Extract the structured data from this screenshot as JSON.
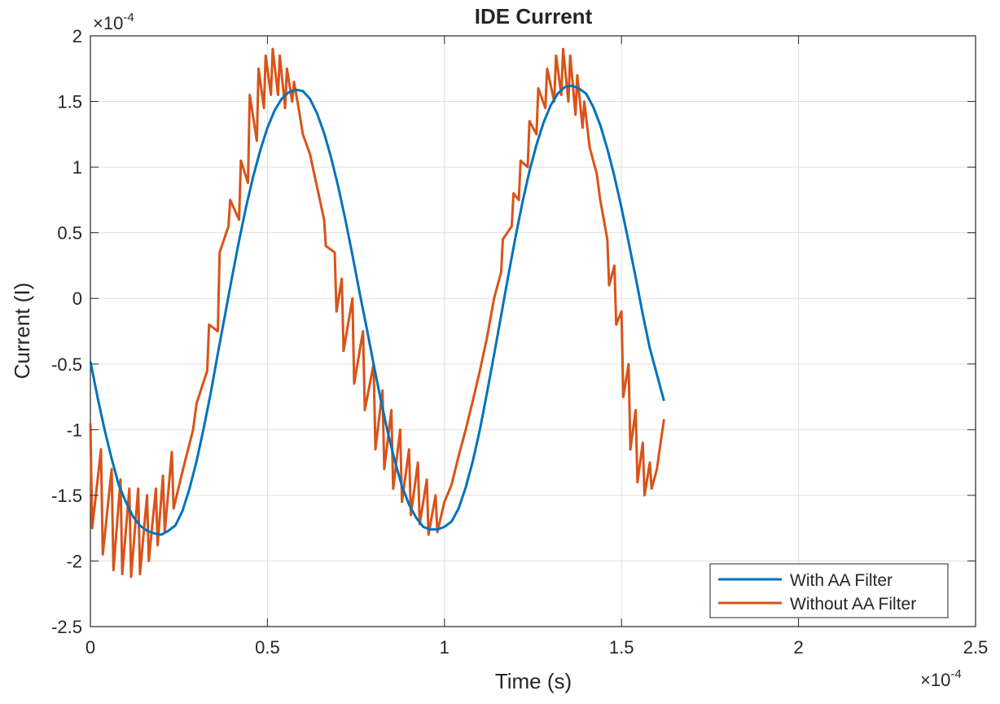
{
  "chart_data": {
    "type": "line",
    "title": "IDE Current",
    "xlabel": "Time (s)",
    "ylabel": "Current (I)",
    "x_exponent_label": "×10",
    "x_exponent_power": "-4",
    "y_exponent_label": "×10",
    "y_exponent_power": "-4",
    "xlim": [
      0,
      2.5
    ],
    "ylim": [
      -2.5,
      2
    ],
    "x_ticks": [
      0,
      0.5,
      1,
      1.5,
      2,
      2.5
    ],
    "x_tick_labels": [
      "0",
      "0.5",
      "1",
      "1.5",
      "2",
      "2.5"
    ],
    "y_ticks": [
      -2.5,
      -2,
      -1.5,
      -1,
      -0.5,
      0,
      0.5,
      1,
      1.5,
      2
    ],
    "y_tick_labels": [
      "-2.5",
      "-2",
      "-1.5",
      "-1",
      "-0.5",
      "0",
      "0.5",
      "1",
      "1.5",
      "2"
    ],
    "grid": true,
    "legend_position": "bottom-right",
    "series": [
      {
        "name": "With AA Filter",
        "color": "#0072BD",
        "points": [
          [
            0,
            -0.48
          ],
          [
            0.02,
            -0.75
          ],
          [
            0.04,
            -1.0
          ],
          [
            0.06,
            -1.22
          ],
          [
            0.08,
            -1.42
          ],
          [
            0.1,
            -1.55
          ],
          [
            0.12,
            -1.66
          ],
          [
            0.14,
            -1.73
          ],
          [
            0.16,
            -1.77
          ],
          [
            0.18,
            -1.79
          ],
          [
            0.2,
            -1.8
          ],
          [
            0.22,
            -1.77
          ],
          [
            0.24,
            -1.73
          ],
          [
            0.26,
            -1.62
          ],
          [
            0.28,
            -1.45
          ],
          [
            0.3,
            -1.24
          ],
          [
            0.32,
            -0.99
          ],
          [
            0.34,
            -0.72
          ],
          [
            0.36,
            -0.42
          ],
          [
            0.38,
            -0.13
          ],
          [
            0.4,
            0.16
          ],
          [
            0.42,
            0.44
          ],
          [
            0.44,
            0.7
          ],
          [
            0.46,
            0.93
          ],
          [
            0.48,
            1.13
          ],
          [
            0.5,
            1.3
          ],
          [
            0.52,
            1.43
          ],
          [
            0.54,
            1.52
          ],
          [
            0.56,
            1.57
          ],
          [
            0.58,
            1.59
          ],
          [
            0.6,
            1.58
          ],
          [
            0.62,
            1.52
          ],
          [
            0.64,
            1.41
          ],
          [
            0.66,
            1.26
          ],
          [
            0.68,
            1.07
          ],
          [
            0.7,
            0.85
          ],
          [
            0.72,
            0.6
          ],
          [
            0.74,
            0.33
          ],
          [
            0.76,
            0.05
          ],
          [
            0.78,
            -0.22
          ],
          [
            0.8,
            -0.5
          ],
          [
            0.82,
            -0.77
          ],
          [
            0.84,
            -1.02
          ],
          [
            0.86,
            -1.24
          ],
          [
            0.88,
            -1.43
          ],
          [
            0.9,
            -1.57
          ],
          [
            0.92,
            -1.67
          ],
          [
            0.94,
            -1.74
          ],
          [
            0.96,
            -1.76
          ],
          [
            0.98,
            -1.76
          ],
          [
            1.0,
            -1.74
          ],
          [
            1.02,
            -1.7
          ],
          [
            1.04,
            -1.6
          ],
          [
            1.06,
            -1.44
          ],
          [
            1.08,
            -1.24
          ],
          [
            1.1,
            -1.0
          ],
          [
            1.12,
            -0.72
          ],
          [
            1.14,
            -0.43
          ],
          [
            1.16,
            -0.13
          ],
          [
            1.18,
            0.17
          ],
          [
            1.2,
            0.46
          ],
          [
            1.22,
            0.73
          ],
          [
            1.24,
            0.97
          ],
          [
            1.26,
            1.17
          ],
          [
            1.28,
            1.34
          ],
          [
            1.3,
            1.47
          ],
          [
            1.32,
            1.56
          ],
          [
            1.34,
            1.61
          ],
          [
            1.36,
            1.62
          ],
          [
            1.38,
            1.6
          ],
          [
            1.4,
            1.56
          ],
          [
            1.42,
            1.46
          ],
          [
            1.44,
            1.32
          ],
          [
            1.46,
            1.14
          ],
          [
            1.48,
            0.93
          ],
          [
            1.5,
            0.69
          ],
          [
            1.52,
            0.43
          ],
          [
            1.54,
            0.16
          ],
          [
            1.56,
            -0.12
          ],
          [
            1.58,
            -0.38
          ],
          [
            1.6,
            -0.58
          ],
          [
            1.62,
            -0.78
          ]
        ]
      },
      {
        "name": "Without AA Filter",
        "color": "#D95319",
        "points": [
          [
            0,
            -0.95
          ],
          [
            0.005,
            -1.75
          ],
          [
            0.03,
            -1.15
          ],
          [
            0.035,
            -1.95
          ],
          [
            0.06,
            -1.3
          ],
          [
            0.065,
            -2.07
          ],
          [
            0.085,
            -1.38
          ],
          [
            0.09,
            -2.1
          ],
          [
            0.11,
            -1.45
          ],
          [
            0.115,
            -2.12
          ],
          [
            0.135,
            -1.45
          ],
          [
            0.14,
            -2.1
          ],
          [
            0.16,
            -1.5
          ],
          [
            0.165,
            -2.0
          ],
          [
            0.185,
            -1.45
          ],
          [
            0.19,
            -1.88
          ],
          [
            0.205,
            -1.35
          ],
          [
            0.21,
            -1.78
          ],
          [
            0.23,
            -1.17
          ],
          [
            0.235,
            -1.6
          ],
          [
            0.26,
            -1.32
          ],
          [
            0.29,
            -1.0
          ],
          [
            0.3,
            -0.8
          ],
          [
            0.33,
            -0.55
          ],
          [
            0.335,
            -0.2
          ],
          [
            0.36,
            -0.25
          ],
          [
            0.365,
            0.35
          ],
          [
            0.39,
            0.55
          ],
          [
            0.395,
            0.75
          ],
          [
            0.42,
            0.6
          ],
          [
            0.425,
            1.05
          ],
          [
            0.445,
            0.88
          ],
          [
            0.45,
            1.55
          ],
          [
            0.47,
            1.2
          ],
          [
            0.475,
            1.75
          ],
          [
            0.49,
            1.45
          ],
          [
            0.495,
            1.85
          ],
          [
            0.51,
            1.55
          ],
          [
            0.515,
            1.9
          ],
          [
            0.53,
            1.55
          ],
          [
            0.535,
            1.85
          ],
          [
            0.55,
            1.45
          ],
          [
            0.555,
            1.75
          ],
          [
            0.57,
            1.5
          ],
          [
            0.575,
            1.65
          ],
          [
            0.59,
            1.42
          ],
          [
            0.6,
            1.25
          ],
          [
            0.62,
            1.1
          ],
          [
            0.64,
            0.85
          ],
          [
            0.66,
            0.6
          ],
          [
            0.665,
            0.4
          ],
          [
            0.69,
            0.35
          ],
          [
            0.695,
            -0.1
          ],
          [
            0.71,
            0.15
          ],
          [
            0.715,
            -0.4
          ],
          [
            0.74,
            0.0
          ],
          [
            0.745,
            -0.65
          ],
          [
            0.77,
            -0.25
          ],
          [
            0.775,
            -0.85
          ],
          [
            0.8,
            -0.5
          ],
          [
            0.805,
            -1.15
          ],
          [
            0.825,
            -0.7
          ],
          [
            0.83,
            -1.3
          ],
          [
            0.85,
            -0.85
          ],
          [
            0.855,
            -1.45
          ],
          [
            0.875,
            -1.0
          ],
          [
            0.88,
            -1.55
          ],
          [
            0.9,
            -1.15
          ],
          [
            0.905,
            -1.65
          ],
          [
            0.925,
            -1.25
          ],
          [
            0.93,
            -1.72
          ],
          [
            0.95,
            -1.38
          ],
          [
            0.955,
            -1.8
          ],
          [
            0.975,
            -1.5
          ],
          [
            0.98,
            -1.78
          ],
          [
            1.0,
            -1.55
          ],
          [
            1.02,
            -1.42
          ],
          [
            1.04,
            -1.2
          ],
          [
            1.06,
            -1.0
          ],
          [
            1.08,
            -0.78
          ],
          [
            1.1,
            -0.55
          ],
          [
            1.12,
            -0.3
          ],
          [
            1.14,
            0.0
          ],
          [
            1.16,
            0.2
          ],
          [
            1.165,
            0.45
          ],
          [
            1.19,
            0.55
          ],
          [
            1.195,
            0.8
          ],
          [
            1.21,
            0.75
          ],
          [
            1.215,
            1.05
          ],
          [
            1.235,
            1.0
          ],
          [
            1.24,
            1.35
          ],
          [
            1.26,
            1.25
          ],
          [
            1.265,
            1.6
          ],
          [
            1.285,
            1.45
          ],
          [
            1.29,
            1.75
          ],
          [
            1.31,
            1.5
          ],
          [
            1.315,
            1.85
          ],
          [
            1.33,
            1.55
          ],
          [
            1.335,
            1.9
          ],
          [
            1.35,
            1.5
          ],
          [
            1.355,
            1.85
          ],
          [
            1.37,
            1.4
          ],
          [
            1.375,
            1.7
          ],
          [
            1.39,
            1.3
          ],
          [
            1.395,
            1.5
          ],
          [
            1.41,
            1.15
          ],
          [
            1.43,
            0.95
          ],
          [
            1.44,
            0.75
          ],
          [
            1.46,
            0.45
          ],
          [
            1.465,
            0.1
          ],
          [
            1.48,
            0.25
          ],
          [
            1.485,
            -0.2
          ],
          [
            1.5,
            -0.1
          ],
          [
            1.505,
            -0.75
          ],
          [
            1.52,
            -0.5
          ],
          [
            1.525,
            -1.15
          ],
          [
            1.54,
            -0.85
          ],
          [
            1.545,
            -1.4
          ],
          [
            1.56,
            -1.1
          ],
          [
            1.565,
            -1.5
          ],
          [
            1.58,
            -1.25
          ],
          [
            1.585,
            -1.45
          ],
          [
            1.6,
            -1.3
          ],
          [
            1.605,
            -1.2
          ],
          [
            1.62,
            -0.92
          ]
        ]
      }
    ]
  }
}
